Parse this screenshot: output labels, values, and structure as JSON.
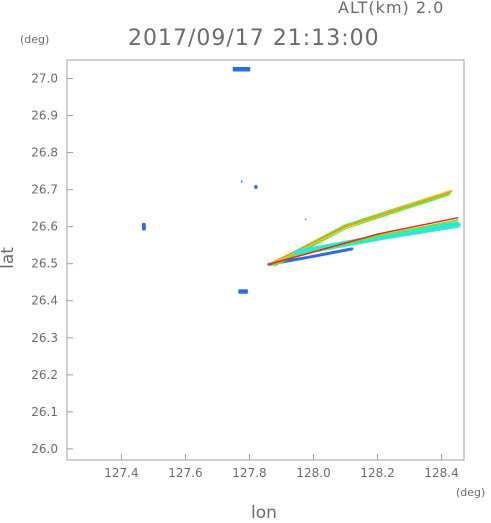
{
  "header": {
    "alt_label": "ALT(km) 2.0",
    "timestamp": "2017/09/17 21:13:00"
  },
  "chart_data": {
    "type": "scatter",
    "xlabel": "lon",
    "ylabel": "lat",
    "x_unit": "(deg)",
    "y_unit": "(deg)",
    "xlim": [
      127.23,
      128.47
    ],
    "ylim": [
      25.97,
      27.05
    ],
    "xticks": [
      127.4,
      127.6,
      127.8,
      128.0,
      128.2,
      128.4
    ],
    "xtick_labels": [
      "127.4",
      "127.6",
      "127.8",
      "128.0",
      "128.2",
      "128.4"
    ],
    "yticks": [
      26.0,
      26.1,
      26.2,
      26.3,
      26.4,
      26.5,
      26.6,
      26.7,
      26.8,
      26.9,
      27.0
    ],
    "ytick_labels": [
      "26.0",
      "26.1",
      "26.2",
      "26.3",
      "26.4",
      "26.5",
      "26.6",
      "26.7",
      "26.8",
      "26.9",
      "27.0"
    ],
    "grid": false,
    "colors": {
      "blue": "#2f6be0",
      "cyan": "#2ee6d6",
      "green": "#6be63c",
      "yellow": "#dde83a",
      "orange": "#ff8a1e",
      "red": "#e8281e"
    },
    "echo_blobs": [
      {
        "lon": 127.775,
        "lat": 27.025,
        "w": 0.055,
        "h": 0.012,
        "color": "blue"
      },
      {
        "lon": 127.47,
        "lat": 26.6,
        "w": 0.012,
        "h": 0.02,
        "color": "blue"
      },
      {
        "lon": 127.82,
        "lat": 26.707,
        "w": 0.01,
        "h": 0.01,
        "color": "blue"
      },
      {
        "lon": 127.775,
        "lat": 26.722,
        "w": 0.004,
        "h": 0.006,
        "color": "blue"
      },
      {
        "lon": 127.975,
        "lat": 26.62,
        "w": 0.004,
        "h": 0.004,
        "color": "blue"
      },
      {
        "lon": 127.78,
        "lat": 26.425,
        "w": 0.03,
        "h": 0.012,
        "color": "blue"
      }
    ],
    "echo_streaks": [
      {
        "color": "blue",
        "width": 3,
        "points": [
          [
            127.86,
            26.498
          ],
          [
            128.0,
            26.52
          ],
          [
            128.12,
            26.54
          ]
        ]
      },
      {
        "color": "green",
        "width": 5,
        "points": [
          [
            127.88,
            26.5
          ],
          [
            128.1,
            26.6
          ],
          [
            128.42,
            26.69
          ]
        ]
      },
      {
        "color": "yellow",
        "width": 2,
        "points": [
          [
            127.86,
            26.498
          ],
          [
            128.1,
            26.598
          ],
          [
            128.43,
            26.697
          ]
        ]
      },
      {
        "color": "orange",
        "width": 1.5,
        "points": [
          [
            127.86,
            26.498
          ],
          [
            128.1,
            26.6
          ],
          [
            128.43,
            26.695
          ]
        ]
      },
      {
        "color": "cyan",
        "width": 6,
        "points": [
          [
            127.95,
            26.53
          ],
          [
            128.2,
            26.57
          ],
          [
            128.45,
            26.605
          ]
        ]
      },
      {
        "color": "green",
        "width": 2,
        "points": [
          [
            127.92,
            26.515
          ],
          [
            128.2,
            26.575
          ],
          [
            128.45,
            26.617
          ]
        ]
      },
      {
        "color": "red",
        "width": 1.5,
        "points": [
          [
            127.86,
            26.498
          ],
          [
            128.2,
            26.58
          ],
          [
            128.45,
            26.624
          ]
        ]
      }
    ]
  }
}
